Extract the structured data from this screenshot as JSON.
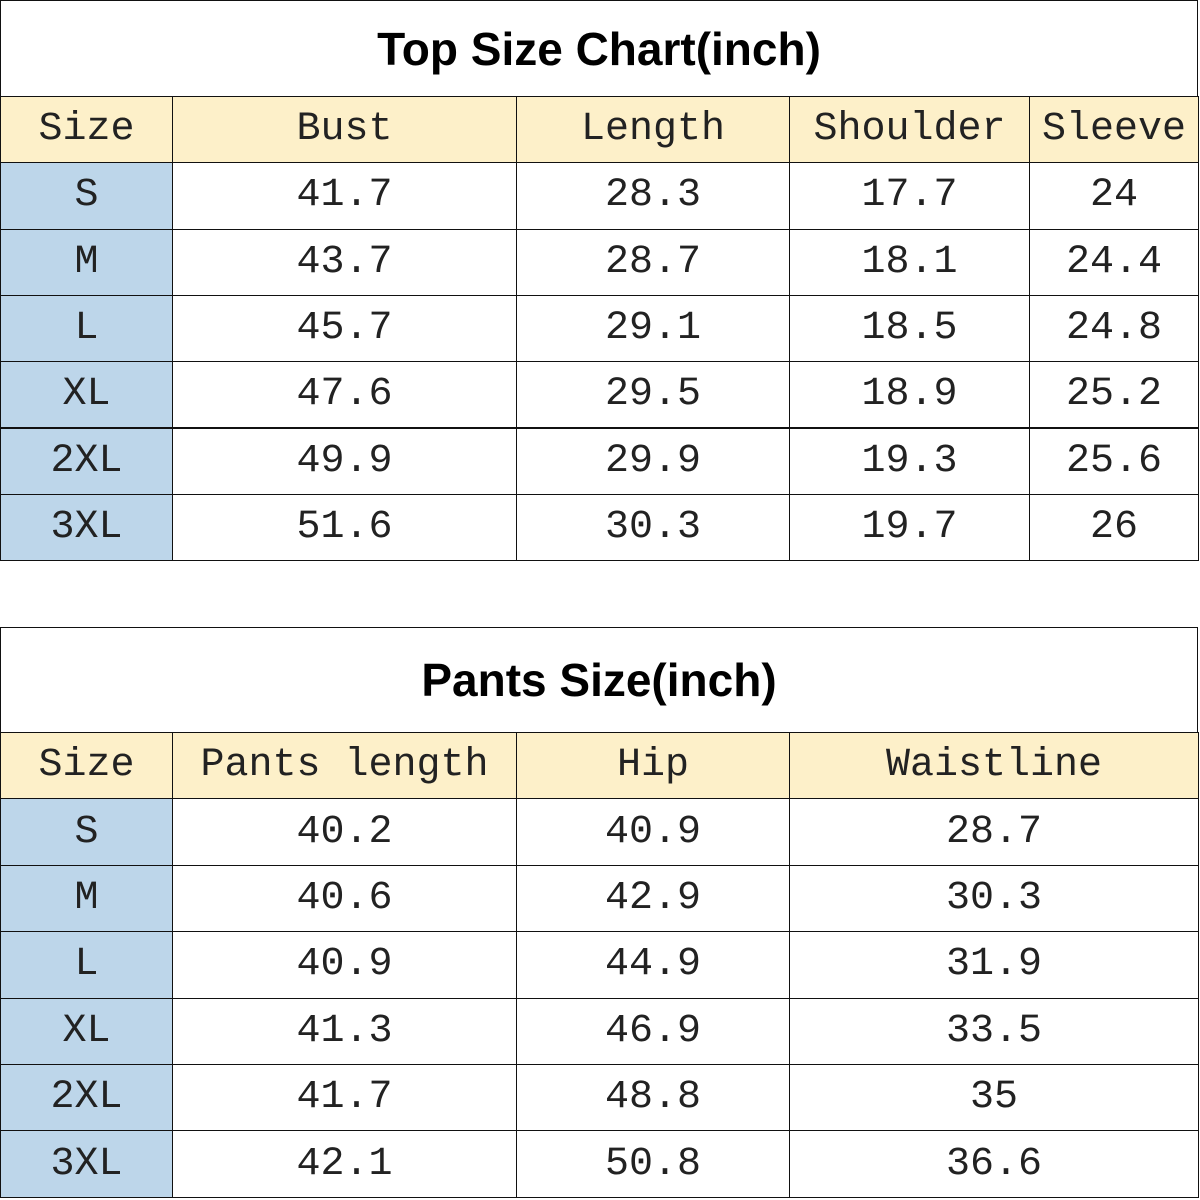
{
  "tables": [
    {
      "title": "Top Size Chart(inch)",
      "headers": [
        "Size",
        "Bust",
        "Length",
        "Shoulder",
        "Sleeve"
      ],
      "rows": [
        [
          "S",
          41.7,
          28.3,
          17.7,
          24
        ],
        [
          "M",
          43.7,
          28.7,
          18.1,
          24.4
        ],
        [
          "L",
          45.7,
          29.1,
          18.5,
          24.8
        ],
        [
          "XL",
          47.6,
          29.5,
          18.9,
          25.2
        ],
        [
          "2XL",
          49.9,
          29.9,
          19.3,
          25.6
        ],
        [
          "3XL",
          51.6,
          30.3,
          19.7,
          26
        ]
      ]
    },
    {
      "title": "Pants Size(inch)",
      "headers": [
        "Size",
        "Pants length",
        "Hip",
        "Waistline"
      ],
      "rows": [
        [
          "S",
          40.2,
          40.9,
          28.7
        ],
        [
          "M",
          40.6,
          42.9,
          30.3
        ],
        [
          "L",
          40.9,
          44.9,
          31.9
        ],
        [
          "XL",
          41.3,
          46.9,
          33.5
        ],
        [
          "2XL",
          41.7,
          48.8,
          35
        ],
        [
          "3XL",
          42.1,
          50.8,
          36.6
        ]
      ]
    }
  ]
}
